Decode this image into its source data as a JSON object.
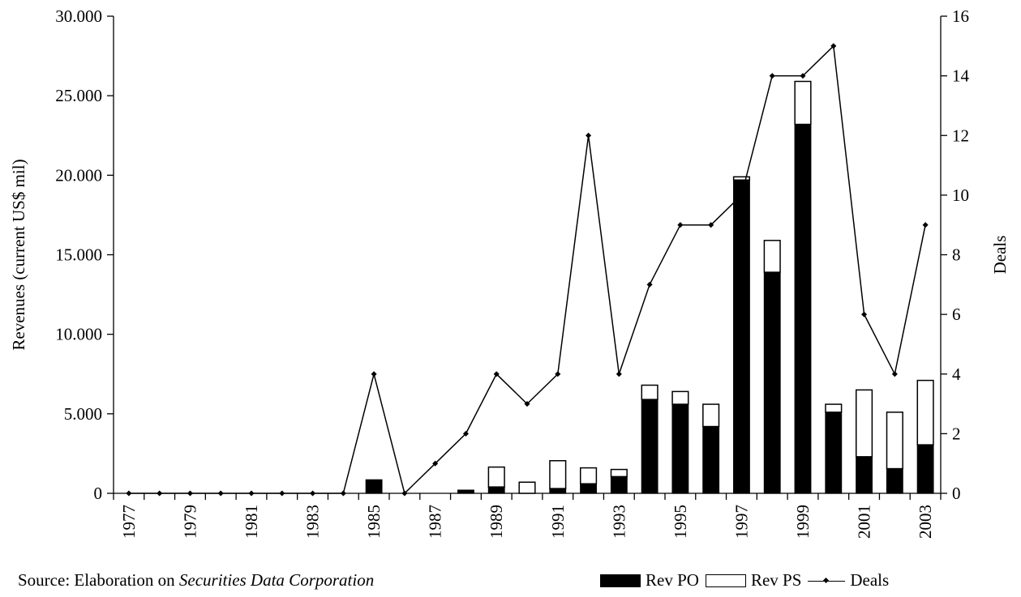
{
  "chart_data": {
    "type": "bar",
    "title": "",
    "x": [
      1977,
      1978,
      1979,
      1980,
      1981,
      1982,
      1983,
      1984,
      1985,
      1986,
      1987,
      1988,
      1989,
      1990,
      1991,
      1992,
      1993,
      1994,
      1995,
      1996,
      1997,
      1998,
      1999,
      2000,
      2001,
      2002,
      2003
    ],
    "x_tick_labels": [
      "1977",
      "1979",
      "1981",
      "1983",
      "1985",
      "1987",
      "1989",
      "1991",
      "1993",
      "1995",
      "1997",
      "1999",
      "2001",
      "2003"
    ],
    "ylabel": "Revenues (current US$ mil)",
    "y2label": "Deals",
    "ylim": [
      0,
      30000
    ],
    "y2lim": [
      0,
      16
    ],
    "y_tick_labels": [
      "0",
      "5.000",
      "10.000",
      "15.000",
      "20.000",
      "25.000",
      "30.000"
    ],
    "y2_tick_labels": [
      "0",
      "2",
      "4",
      "6",
      "8",
      "10",
      "12",
      "14",
      "16"
    ],
    "stacked": true,
    "series": [
      {
        "name": "Rev PO",
        "kind": "bar",
        "axis": "left",
        "color": "#000000",
        "values": [
          0,
          0,
          0,
          0,
          0,
          0,
          0,
          0,
          850,
          0,
          0,
          200,
          400,
          0,
          300,
          600,
          1050,
          5900,
          5600,
          4200,
          19700,
          13900,
          23200,
          5100,
          2300,
          1550,
          3050
        ]
      },
      {
        "name": "Rev PS",
        "kind": "bar",
        "axis": "left",
        "color": "#ffffff",
        "values": [
          0,
          0,
          0,
          0,
          0,
          0,
          0,
          0,
          0,
          0,
          0,
          0,
          1250,
          700,
          1750,
          1000,
          450,
          900,
          800,
          1400,
          200,
          2000,
          2700,
          500,
          4200,
          3550,
          4050
        ]
      },
      {
        "name": "Deals",
        "kind": "line",
        "axis": "right",
        "color": "#000000",
        "values": [
          0,
          0,
          0,
          0,
          0,
          0,
          0,
          0,
          4,
          0,
          1,
          2,
          4,
          3,
          4,
          12,
          4,
          7,
          9,
          9,
          10,
          14,
          14,
          15,
          6,
          4,
          9
        ]
      }
    ],
    "legend_position": "bottom-right",
    "grid": false
  },
  "footer": {
    "source_prefix": "Source: Elaboration on ",
    "source_italic": "Securities Data Corporation"
  },
  "legend": {
    "po_label": "Rev PO",
    "ps_label": "Rev PS",
    "deals_label": "Deals"
  }
}
